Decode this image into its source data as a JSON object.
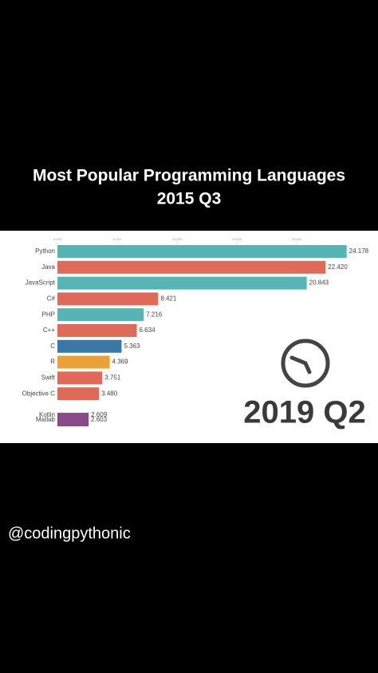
{
  "chart_data": {
    "type": "bar",
    "orientation": "horizontal",
    "title": "Most Popular Programming Languages",
    "subtitle": "2015 Q3",
    "period": "2019 Q2",
    "categories": [
      "Python",
      "Java",
      "JavaScript",
      "C#",
      "PHP",
      "C++",
      "C",
      "R",
      "Swift",
      "Objective C",
      "Kotlin",
      "Matlab"
    ],
    "values": [
      24.178,
      22.42,
      20.843,
      8.421,
      7.216,
      6.634,
      5.363,
      4.369,
      3.751,
      3.48,
      2.609,
      2.603
    ],
    "value_labels": [
      "24.178",
      "22.420",
      "20.843",
      "8.421",
      "7.216",
      "6.634",
      "5.363",
      "4.369",
      "3.751",
      "3.480",
      "2.609",
      "2.603"
    ],
    "colors": [
      "#56b4b4",
      "#e06a5a",
      "#56b4b4",
      "#e06a5a",
      "#56b4b4",
      "#e06a5a",
      "#3a78a8",
      "#eba13a",
      "#e06a5a",
      "#e06a5a",
      "#3a78a8",
      "#8a4a8a"
    ],
    "xlim": [
      0,
      25
    ],
    "xticks": [
      {
        "value": 0,
        "label": "0.000"
      },
      {
        "value": 5,
        "label": "5.000"
      },
      {
        "value": 10,
        "label": "10.000"
      },
      {
        "value": 15,
        "label": "15.000"
      },
      {
        "value": 20,
        "label": "20.000"
      }
    ],
    "grid": false
  },
  "handle": "@codingpythonic"
}
